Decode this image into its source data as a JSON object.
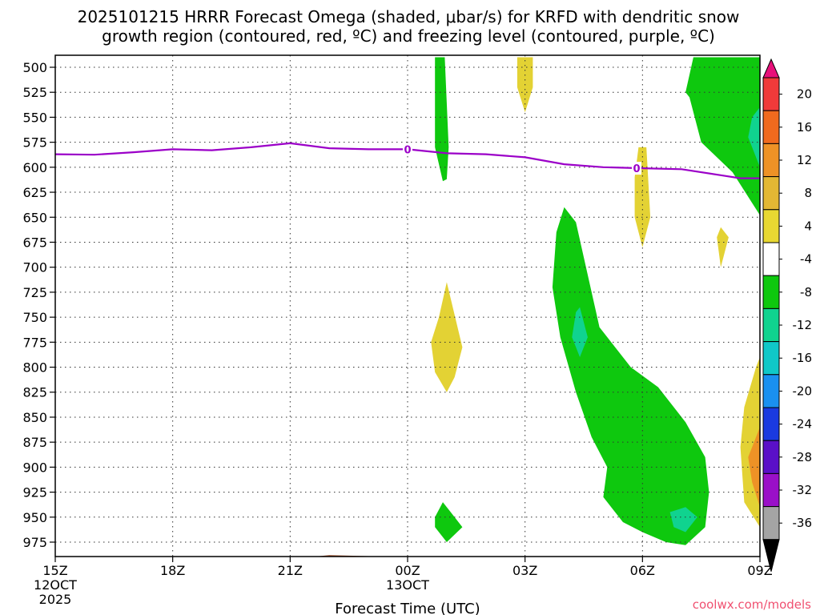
{
  "chart_data": {
    "type": "heatmap",
    "title_line1": "2025101215 HRRR Forecast Omega (shaded, μbar/s) for KRFD with dendritic snow",
    "title_line2": "growth region (contoured, red, ºC) and freezing level (contoured, purple, ºC)",
    "xlabel": "Forecast Time (UTC)",
    "credit": "coolwx.com/models",
    "x_ticks": [
      {
        "hour": 0,
        "lines": [
          "15Z",
          "12OCT",
          "2025"
        ]
      },
      {
        "hour": 3,
        "lines": [
          "18Z"
        ]
      },
      {
        "hour": 6,
        "lines": [
          "21Z"
        ]
      },
      {
        "hour": 9,
        "lines": [
          "00Z",
          "13OCT"
        ]
      },
      {
        "hour": 12,
        "lines": [
          "03Z"
        ]
      },
      {
        "hour": 15,
        "lines": [
          "06Z"
        ]
      },
      {
        "hour": 18,
        "lines": [
          "09Z"
        ]
      }
    ],
    "xlim": [
      0,
      18
    ],
    "y_ticks": [
      "500",
      "525",
      "550",
      "575",
      "600",
      "625",
      "650",
      "675",
      "700",
      "725",
      "750",
      "775",
      "800",
      "825",
      "850",
      "875",
      "900",
      "925",
      "950",
      "975"
    ],
    "ylim_mb": [
      490,
      1000
    ],
    "colorbar": {
      "labels": [
        "20",
        "16",
        "12",
        "8",
        "4",
        "-4",
        "-8",
        "-12",
        "-16",
        "-20",
        "-24",
        "-28",
        "-32",
        "-36"
      ],
      "colors": [
        "#e8107a",
        "#f03a3a",
        "#f06a1e",
        "#ee9226",
        "#e3b734",
        "#e8d832",
        "#ffffff",
        "#0ec80e",
        "#10d38f",
        "#10c8c8",
        "#1a90f0",
        "#1a3ae0",
        "#5a10c8",
        "#9a10c8",
        "#a4a4a4",
        "#000000"
      ]
    },
    "freezing_level": {
      "color": "#9b00c8",
      "label": "0",
      "points": [
        [
          0,
          587
        ],
        [
          1,
          587.5
        ],
        [
          2,
          585
        ],
        [
          3,
          582
        ],
        [
          4,
          583
        ],
        [
          5,
          580
        ],
        [
          6,
          576
        ],
        [
          7,
          581
        ],
        [
          8,
          582
        ],
        [
          9,
          582
        ],
        [
          10,
          586
        ],
        [
          11,
          587
        ],
        [
          12,
          590
        ],
        [
          13,
          597
        ],
        [
          14,
          600
        ],
        [
          15,
          601
        ],
        [
          16,
          602
        ],
        [
          17,
          608
        ],
        [
          17.5,
          611
        ],
        [
          18,
          611
        ]
      ]
    },
    "omega_regions": [
      {
        "name": "green-band-00z",
        "value": -6,
        "color": "#0ec80e",
        "points": [
          [
            9.7,
            490
          ],
          [
            9.95,
            490
          ],
          [
            10.05,
            580
          ],
          [
            10.0,
            612
          ],
          [
            9.9,
            614
          ],
          [
            9.7,
            580
          ],
          [
            9.7,
            530
          ]
        ]
      },
      {
        "name": "yellow-blob-02z-upper",
        "value": 5,
        "color": "#e3d234",
        "points": [
          [
            11.8,
            490
          ],
          [
            12.2,
            490
          ],
          [
            12.2,
            520
          ],
          [
            12.0,
            545
          ],
          [
            11.8,
            520
          ]
        ]
      },
      {
        "name": "green-upper-right",
        "value": -6,
        "color": "#0ec80e",
        "points": [
          [
            16.3,
            490
          ],
          [
            18,
            490
          ],
          [
            18,
            648
          ],
          [
            17.3,
            605
          ],
          [
            16.5,
            575
          ],
          [
            16.2,
            530
          ],
          [
            16.1,
            525
          ]
        ]
      },
      {
        "name": "teal-upper-right",
        "value": -10,
        "color": "#10d38f",
        "points": [
          [
            17.8,
            550
          ],
          [
            18,
            540
          ],
          [
            18,
            600
          ],
          [
            17.9,
            590
          ],
          [
            17.7,
            570
          ]
        ]
      },
      {
        "name": "yellow-0545z",
        "value": 5,
        "color": "#e3d234",
        "points": [
          [
            14.9,
            580
          ],
          [
            15.1,
            580
          ],
          [
            15.2,
            650
          ],
          [
            15.0,
            680
          ],
          [
            14.8,
            650
          ],
          [
            14.8,
            610
          ]
        ]
      },
      {
        "name": "yellow-08z",
        "value": 5,
        "color": "#e3d234",
        "points": [
          [
            17.0,
            660
          ],
          [
            17.2,
            670
          ],
          [
            17.0,
            700
          ],
          [
            16.9,
            670
          ]
        ]
      },
      {
        "name": "yellow-01z",
        "value": 5,
        "color": "#e3d234",
        "points": [
          [
            10.0,
            715
          ],
          [
            10.4,
            780
          ],
          [
            10.2,
            810
          ],
          [
            10.0,
            825
          ],
          [
            9.7,
            805
          ],
          [
            9.6,
            775
          ],
          [
            9.8,
            750
          ]
        ]
      },
      {
        "name": "green-big-03z",
        "value": -6,
        "color": "#0ec80e",
        "points": [
          [
            13.0,
            640
          ],
          [
            13.3,
            655
          ],
          [
            13.5,
            690
          ],
          [
            13.9,
            760
          ],
          [
            14.7,
            800
          ],
          [
            15.4,
            820
          ],
          [
            16.1,
            855
          ],
          [
            16.6,
            890
          ],
          [
            16.7,
            925
          ],
          [
            16.6,
            960
          ],
          [
            16.1,
            978
          ],
          [
            15.6,
            975
          ],
          [
            15.0,
            965
          ],
          [
            14.5,
            955
          ],
          [
            14.0,
            930
          ],
          [
            14.1,
            900
          ],
          [
            13.7,
            870
          ],
          [
            13.3,
            825
          ],
          [
            12.9,
            770
          ],
          [
            12.7,
            720
          ],
          [
            12.8,
            665
          ]
        ]
      },
      {
        "name": "teal-0430z",
        "value": -10,
        "color": "#10d38f",
        "points": [
          [
            13.4,
            740
          ],
          [
            13.6,
            770
          ],
          [
            13.4,
            790
          ],
          [
            13.2,
            770
          ],
          [
            13.3,
            745
          ]
        ]
      },
      {
        "name": "teal-07z",
        "value": -10,
        "color": "#10d38f",
        "points": [
          [
            15.7,
            945
          ],
          [
            16.1,
            940
          ],
          [
            16.4,
            950
          ],
          [
            16.1,
            965
          ],
          [
            15.8,
            960
          ]
        ]
      },
      {
        "name": "green-small-01z",
        "value": -6,
        "color": "#0ec80e",
        "points": [
          [
            9.9,
            935
          ],
          [
            10.1,
            945
          ],
          [
            10.4,
            960
          ],
          [
            10.0,
            975
          ],
          [
            9.7,
            960
          ],
          [
            9.7,
            950
          ]
        ]
      },
      {
        "name": "yellow-right-low",
        "value": 5,
        "color": "#e3d234",
        "points": [
          [
            18,
            790
          ],
          [
            18,
            960
          ],
          [
            17.6,
            935
          ],
          [
            17.5,
            880
          ],
          [
            17.6,
            840
          ],
          [
            17.9,
            800
          ]
        ]
      },
      {
        "name": "orange-right-low",
        "value": 10,
        "color": "#ee9226",
        "points": [
          [
            18,
            860
          ],
          [
            18,
            940
          ],
          [
            17.8,
            915
          ],
          [
            17.7,
            890
          ],
          [
            17.9,
            870
          ]
        ]
      }
    ],
    "ground": {
      "color": "#a0522d",
      "points": [
        [
          0,
          994
        ],
        [
          1.5,
          993
        ],
        [
          3,
          992
        ],
        [
          5,
          991.5
        ],
        [
          6,
          991
        ],
        [
          6.5,
          990
        ],
        [
          7,
          988
        ],
        [
          8,
          989
        ],
        [
          9,
          991
        ],
        [
          12,
          991
        ],
        [
          15,
          991
        ],
        [
          16,
          992
        ],
        [
          18,
          993
        ]
      ]
    }
  }
}
